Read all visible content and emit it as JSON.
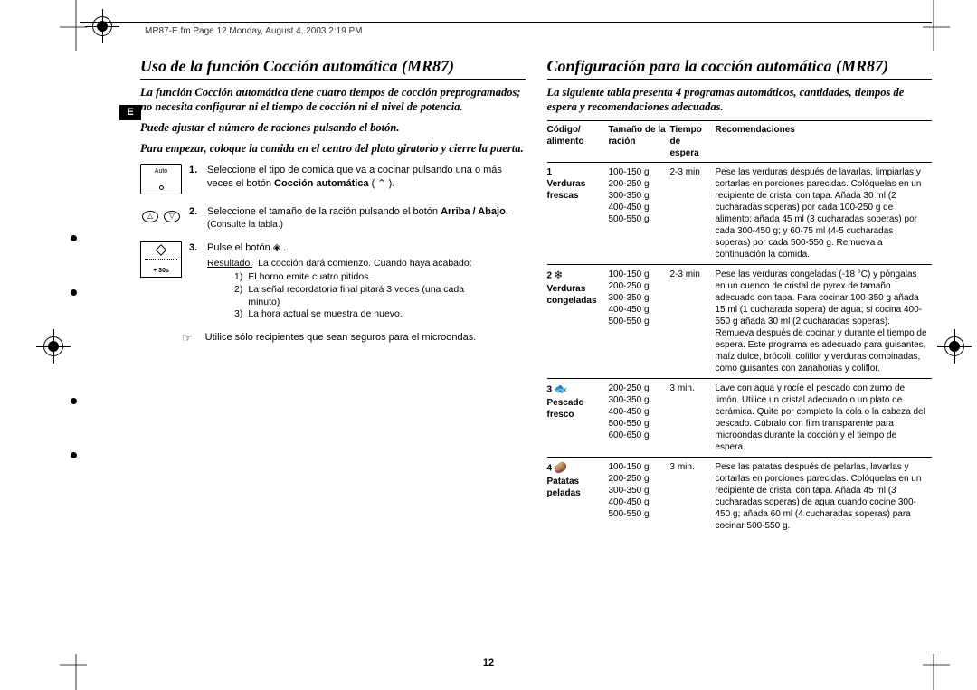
{
  "doc_header": "MR87-E.fm  Page 12  Monday, August 4, 2003  2:19 PM",
  "lang_tab": "E",
  "page_number": "12",
  "left": {
    "title": "Uso de la función Cocción automática (MR87)",
    "intro1": "La función Cocción automática tiene cuatro tiempos de cocción preprogramados; no necesita configurar ni el tiempo de cocción ni el nivel de potencia.",
    "intro2": "Puede ajustar el número de raciones pulsando el botón.",
    "intro3": "Para empezar, coloque la comida en el centro del plato giratorio y cierre la puerta.",
    "step1_num": "1.",
    "step1_text_a": "Seleccione el tipo de comida que va a cocinar pulsando una o más veces el botón  ",
    "step1_bold": "Cocción automática",
    "step1_text_b": " ( ⌃ ).",
    "auto_label": "Auto",
    "step2_num": "2.",
    "step2_text_a": "Seleccione el tamaño de la ración pulsando el botón ",
    "step2_bold": "Arriba / Abajo",
    "step2_text_b": ".",
    "step2_sub": "(Consulte la tabla.)",
    "step3_num": "3.",
    "step3_text_a": "Pulse el botón ",
    "step3_sym": "◈",
    "step3_text_b": " .",
    "result_label": "Resultado:",
    "result_text": "La cocción dará comienzo. Cuando haya acabado:",
    "sub1_n": "1)",
    "sub1_t": "El horno emite cuatro pitidos.",
    "sub2_n": "2)",
    "sub2_t": "La señal recordatoria final pitará 3 veces (una cada minuto)",
    "sub3_n": "3)",
    "sub3_t": "La hora actual se muestra de nuevo.",
    "mw_label": "+ 30s",
    "note_sym": "☞",
    "note_text": "Utilice sólo recipientes que sean seguros para el microondas."
  },
  "right": {
    "title": "Configuración para la cocción automática (MR87)",
    "intro": "La siguiente tabla presenta 4 programas automáticos, cantidades, tiempos de espera y recomendaciones adecuadas.",
    "th1a": "Código/",
    "th1b": "alimento",
    "th2a": "Tamaño de la",
    "th2b": "ración",
    "th3a": "Tiempo de",
    "th3b": "espera",
    "th4": "Recomendaciones",
    "rows": [
      {
        "code_num": "1",
        "icon": "",
        "food_a": "Verduras",
        "food_b": "frescas",
        "sizes": "100-150 g\n200-250 g\n300-350 g\n400-450 g\n500-550 g",
        "wait": "2-3 min",
        "rec": "Pese las verduras después de lavarlas, limpiarlas y cortarlas en porciones parecidas. Colóquelas en un recipiente de cristal con tapa. Añada 30 ml (2 cucharadas soperas) por cada 100-250 g de alimento; añada 45 ml (3 cucharadas soperas) por cada 300-450 g; y 60-75 ml (4-5 cucharadas soperas) por cada 500-550 g. Remueva a continuación la comida."
      },
      {
        "code_num": "2",
        "icon": "❄",
        "food_a": "Verduras",
        "food_b": "congeladas",
        "sizes": "100-150 g\n200-250 g\n300-350 g\n400-450 g\n500-550 g",
        "wait": "2-3 min",
        "rec": "Pese las verduras congeladas (-18 °C) y póngalas en un cuenco de cristal de pyrex de tamaño adecuado con tapa. Para cocinar 100-350 g añada 15 ml (1 cucharada sopera) de agua; si cocina 400-550 g añada 30 ml (2 cucharadas soperas). Remueva después de cocinar y durante el tiempo de espera. Este programa es adecuado para guisantes, maíz dulce, brócoli, coliflor y verduras combinadas, como guisantes con zanahorias y coliflor."
      },
      {
        "code_num": "3",
        "icon": "🐟",
        "food_a": "Pescado",
        "food_b": "fresco",
        "sizes": "200-250 g\n300-350 g\n400-450 g\n500-550 g\n600-650 g",
        "wait": "3 min.",
        "rec": "Lave con agua y rocíe el pescado con zumo de limón. Utilice un cristal adecuado o un plato de cerámica. Quite por completo la cola o la cabeza del pescado. Cúbralo con film transparente para microondas durante la cocción y el tiempo de espera."
      },
      {
        "code_num": "4",
        "icon": "🥔",
        "food_a": "Patatas",
        "food_b": "peladas",
        "sizes": "100-150 g\n200-250 g\n300-350 g\n400-450 g\n500-550 g",
        "wait": "3 min.",
        "rec": "Pese las patatas después de pelarlas, lavarlas y cortarlas en porciones parecidas. Colóquelas en un recipiente de cristal con tapa. Añada 45 ml (3 cucharadas soperas) de agua cuando cocine 300-450 g; añada 60 ml (4 cucharadas soperas) para cocinar 500-550 g."
      }
    ]
  }
}
